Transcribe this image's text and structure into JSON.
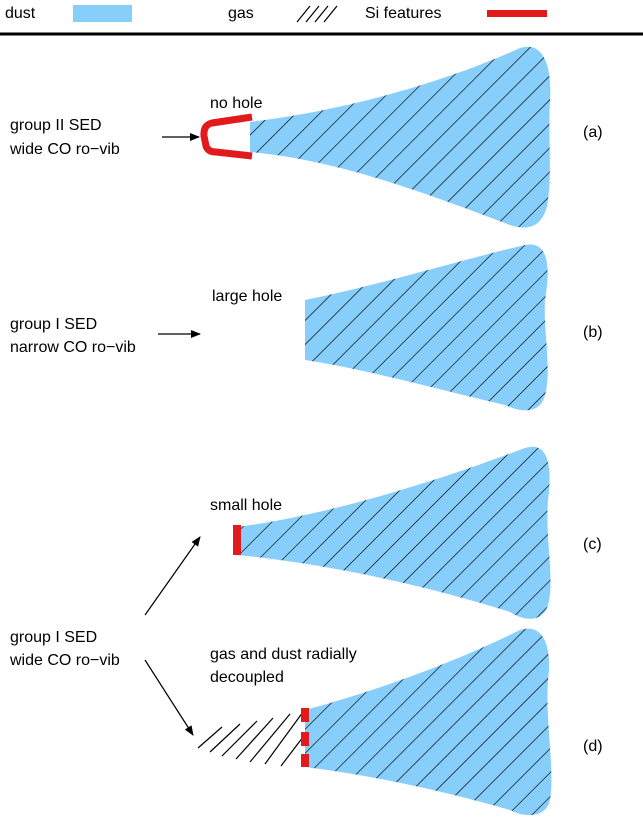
{
  "legend": [
    {
      "label": "dust"
    },
    {
      "label": "gas"
    },
    {
      "label": "Si features"
    }
  ],
  "left_labels": [
    {
      "lines": [
        "group II SED",
        "wide CO ro−vib"
      ]
    },
    {
      "lines": [
        "group I SED",
        "narrow CO ro−vib"
      ]
    },
    {
      "lines": [
        "group I SED",
        "wide CO ro−vib"
      ]
    }
  ],
  "panels": [
    {
      "caption": [
        "no hole"
      ],
      "tag": "(a)"
    },
    {
      "caption": [
        "large hole"
      ],
      "tag": "(b)"
    },
    {
      "caption": [
        "small hole"
      ],
      "tag": "(c)"
    },
    {
      "caption": [
        "gas and dust radially",
        "decoupled"
      ],
      "tag": "(d)"
    }
  ]
}
